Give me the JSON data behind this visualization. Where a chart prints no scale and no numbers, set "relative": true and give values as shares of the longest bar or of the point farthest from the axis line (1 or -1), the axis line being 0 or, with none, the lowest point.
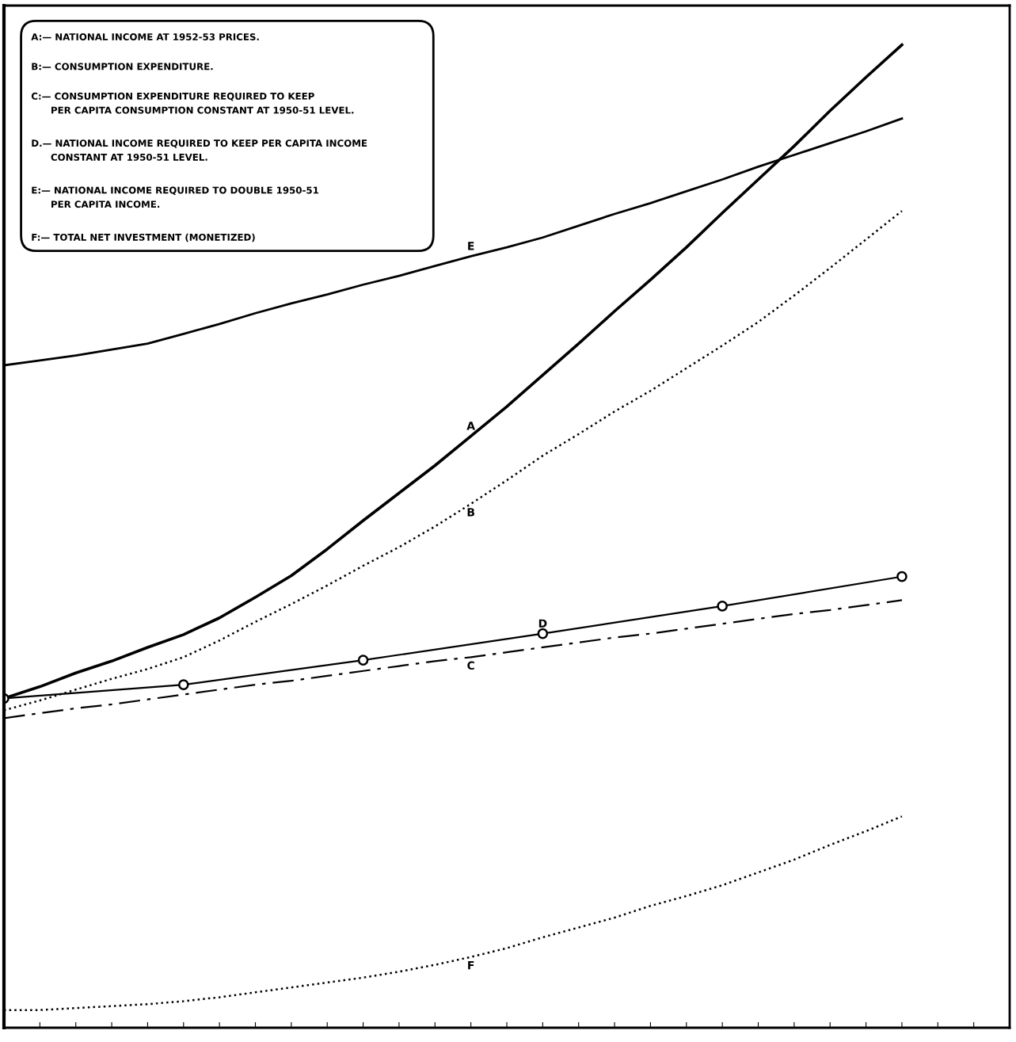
{
  "chart_data": {
    "type": "line",
    "relative": true,
    "legend": false,
    "grid": false,
    "categories": [
      null,
      null,
      null,
      null,
      null,
      null,
      null,
      null,
      null,
      null,
      null,
      null,
      null,
      null,
      null,
      null,
      null,
      null,
      null,
      null,
      null,
      null,
      null,
      null,
      null,
      null,
      null,
      null,
      null
    ],
    "series": [
      {
        "name": "A",
        "color": "#000000",
        "line_style": "solid",
        "marker": "none",
        "values": [
          0.335,
          0.347,
          0.361,
          0.373,
          0.387,
          0.4,
          0.417,
          0.438,
          0.46,
          0.487,
          0.516,
          0.544,
          0.572,
          0.602,
          0.632,
          0.664,
          0.696,
          0.729,
          0.761,
          0.794,
          0.829,
          0.863,
          0.897,
          0.933,
          0.967,
          1.0,
          null,
          null,
          null
        ]
      },
      {
        "name": "B",
        "color": "#000000",
        "line_style": "dotted",
        "marker": "none",
        "values": [
          0.323,
          0.333,
          0.344,
          0.355,
          0.365,
          0.377,
          0.394,
          0.413,
          0.431,
          0.45,
          0.47,
          0.489,
          0.51,
          0.533,
          0.557,
          0.582,
          0.604,
          0.627,
          0.648,
          0.671,
          0.694,
          0.718,
          0.745,
          0.773,
          0.802,
          0.831,
          null,
          null,
          null
        ]
      },
      {
        "name": "C",
        "color": "#000000",
        "line_style": "dashed",
        "marker": "none",
        "values": [
          0.315,
          0.32,
          0.325,
          0.329,
          0.334,
          0.339,
          0.344,
          0.349,
          0.353,
          0.358,
          0.363,
          0.368,
          0.373,
          0.377,
          0.382,
          0.387,
          0.392,
          0.397,
          0.401,
          0.406,
          0.411,
          0.416,
          0.421,
          0.425,
          0.43,
          0.435,
          null,
          null,
          null
        ]
      },
      {
        "name": "D",
        "color": "#000000",
        "line_style": "solid",
        "marker": "circle",
        "values": [
          0.335,
          null,
          null,
          null,
          null,
          0.349,
          null,
          null,
          null,
          null,
          0.374,
          null,
          null,
          null,
          null,
          0.401,
          null,
          null,
          null,
          null,
          0.429,
          null,
          null,
          null,
          null,
          0.459,
          null,
          null,
          null
        ]
      },
      {
        "name": "E",
        "color": "#000000",
        "line_style": "solid",
        "marker": "none",
        "values": [
          0.674,
          0.679,
          0.684,
          0.69,
          0.696,
          0.706,
          0.716,
          0.727,
          0.737,
          0.746,
          0.756,
          0.765,
          0.775,
          0.785,
          0.794,
          0.804,
          0.816,
          0.828,
          0.839,
          0.851,
          0.863,
          0.876,
          0.888,
          0.9,
          0.912,
          0.925,
          null,
          null,
          null
        ]
      },
      {
        "name": "F",
        "color": "#000000",
        "line_style": "dotted",
        "marker": "none",
        "values": [
          0.018,
          0.018,
          0.02,
          0.022,
          0.024,
          0.027,
          0.031,
          0.036,
          0.041,
          0.046,
          0.051,
          0.057,
          0.064,
          0.072,
          0.081,
          0.092,
          0.102,
          0.112,
          0.124,
          0.134,
          0.145,
          0.158,
          0.171,
          0.186,
          0.2,
          0.215,
          null,
          null,
          null
        ]
      }
    ],
    "annotations": [
      "A:— NATIONAL INCOME AT 1952-53 PRICES.",
      "B:— CONSUMPTION EXPENDITURE.",
      "C:— CONSUMPTION EXPENDITURE REQUIRED TO KEEP\n      PER CAPITA CONSUMPTION CONSTANT AT 1950-51 LEVEL.",
      "D.— NATIONAL INCOME REQUIRED TO KEEP PER CAPITA INCOME\n      CONSTANT AT 1950-51 LEVEL.",
      "E:— NATIONAL INCOME REQUIRED TO DOUBLE 1950-51\n      PER CAPITA INCOME.",
      "F:— TOTAL NET INVESTMENT (MONETIZED)"
    ]
  }
}
